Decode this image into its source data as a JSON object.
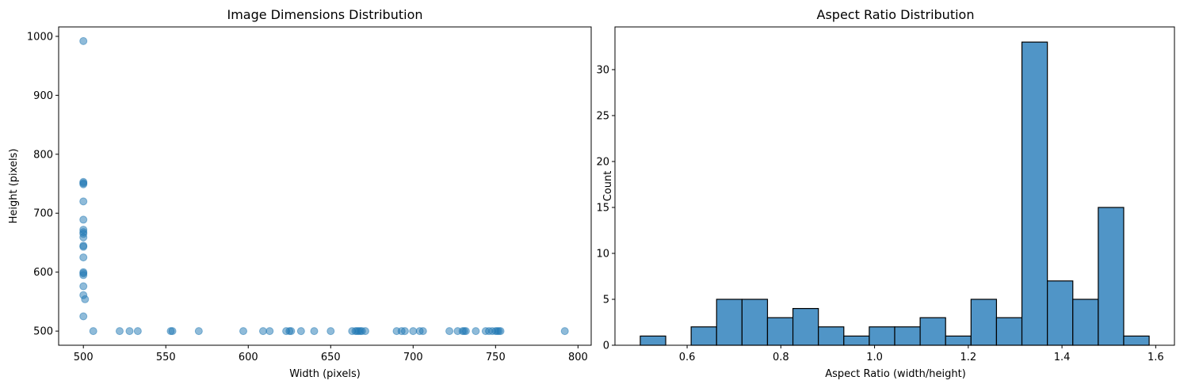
{
  "chart_data": [
    {
      "type": "scatter",
      "title": "Image Dimensions Distribution",
      "xlabel": "Width (pixels)",
      "ylabel": "Height (pixels)",
      "xlim": [
        485,
        808
      ],
      "ylim": [
        476,
        1016
      ],
      "xticks": [
        500,
        550,
        600,
        650,
        700,
        750,
        800
      ],
      "yticks": [
        500,
        600,
        700,
        800,
        900,
        1000
      ],
      "grid": false,
      "color": "#1f77b4",
      "alpha": 0.5,
      "points": [
        [
          500,
          992
        ],
        [
          500,
          753
        ],
        [
          500,
          751
        ],
        [
          500,
          749
        ],
        [
          500,
          720
        ],
        [
          500,
          689
        ],
        [
          500,
          672
        ],
        [
          500,
          668
        ],
        [
          500,
          665
        ],
        [
          500,
          659
        ],
        [
          500,
          645
        ],
        [
          500,
          643
        ],
        [
          500,
          625
        ],
        [
          500,
          600
        ],
        [
          500,
          598
        ],
        [
          500,
          595
        ],
        [
          500,
          576
        ],
        [
          500,
          561
        ],
        [
          501,
          554
        ],
        [
          500,
          525
        ],
        [
          506,
          500
        ],
        [
          522,
          500
        ],
        [
          528,
          500
        ],
        [
          533,
          500
        ],
        [
          553,
          500
        ],
        [
          554,
          500
        ],
        [
          570,
          500
        ],
        [
          597,
          500
        ],
        [
          609,
          500
        ],
        [
          613,
          500
        ],
        [
          623,
          500
        ],
        [
          625,
          500
        ],
        [
          626,
          500
        ],
        [
          632,
          500
        ],
        [
          640,
          500
        ],
        [
          650,
          500
        ],
        [
          663,
          500
        ],
        [
          665,
          500
        ],
        [
          666,
          500
        ],
        [
          667,
          500
        ],
        [
          668,
          500
        ],
        [
          669,
          500
        ],
        [
          671,
          500
        ],
        [
          690,
          500
        ],
        [
          693,
          500
        ],
        [
          695,
          500
        ],
        [
          700,
          500
        ],
        [
          704,
          500
        ],
        [
          706,
          500
        ],
        [
          722,
          500
        ],
        [
          727,
          500
        ],
        [
          730,
          500
        ],
        [
          731,
          500
        ],
        [
          732,
          500
        ],
        [
          738,
          500
        ],
        [
          744,
          500
        ],
        [
          746,
          500
        ],
        [
          748,
          500
        ],
        [
          750,
          500
        ],
        [
          751,
          500
        ],
        [
          752,
          500
        ],
        [
          753,
          500
        ],
        [
          792,
          500
        ]
      ]
    },
    {
      "type": "bar",
      "title": "Aspect Ratio Distribution",
      "xlabel": "Aspect Ratio (width/height)",
      "ylabel": "Count",
      "xlim": [
        0.446,
        1.64
      ],
      "ylim": [
        0,
        34.65
      ],
      "xticks": [
        0.6,
        0.8,
        1.0,
        1.2,
        1.4,
        1.6
      ],
      "yticks": [
        0,
        5,
        10,
        15,
        20,
        25,
        30
      ],
      "grid": false,
      "color": "#5095c7",
      "edgecolor": "#000000",
      "bin_start": 0.5,
      "bin_width": 0.0543,
      "values": [
        1,
        0,
        2,
        5,
        5,
        3,
        4,
        2,
        1,
        2,
        2,
        3,
        1,
        5,
        3,
        33,
        7,
        5,
        15,
        1
      ]
    }
  ]
}
